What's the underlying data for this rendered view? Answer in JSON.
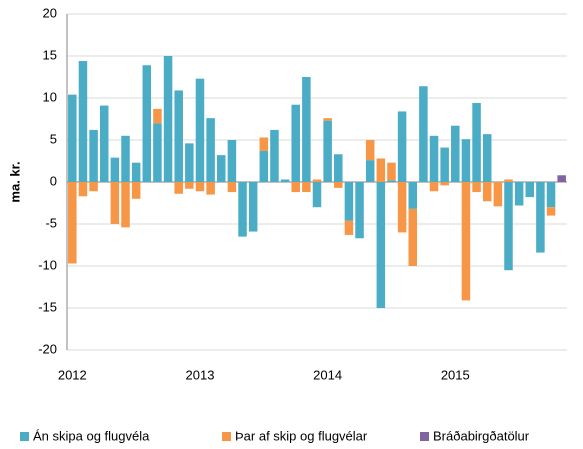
{
  "chart_data": {
    "type": "bar",
    "stacked": true,
    "ylabel": "ma. kr.",
    "categories": [
      "2012",
      null,
      null,
      null,
      null,
      null,
      null,
      null,
      null,
      null,
      null,
      null,
      "2013",
      null,
      null,
      null,
      null,
      null,
      null,
      null,
      null,
      null,
      null,
      null,
      "2014",
      null,
      null,
      null,
      null,
      null,
      null,
      null,
      null,
      null,
      null,
      null,
      "2015",
      null,
      null,
      null,
      null,
      null,
      null,
      null,
      null,
      null,
      null
    ],
    "series": [
      {
        "name": "Án skipa og flugvéla",
        "color": "#4bacc6",
        "values": [
          10.4,
          14.4,
          6.2,
          9.1,
          2.9,
          5.5,
          2.3,
          13.9,
          7.0,
          15.0,
          10.9,
          4.6,
          12.3,
          7.6,
          3.2,
          5.0,
          -6.5,
          -5.9,
          3.7,
          6.2,
          0.3,
          9.2,
          12.5,
          -3.0,
          7.3,
          3.3,
          -4.6,
          -6.7,
          2.6,
          -15.0,
          0.2,
          8.4,
          -3.2,
          11.4,
          5.5,
          4.1,
          6.7,
          5.1,
          9.4,
          5.7,
          null,
          -10.5,
          -2.8,
          -1.8,
          -8.4,
          -3.0,
          null
        ]
      },
      {
        "name": "Þar af skip og flugvélar",
        "color": "#f79646",
        "values": [
          -9.7,
          -1.7,
          -1.1,
          null,
          -5.0,
          -5.4,
          -2.0,
          null,
          1.7,
          null,
          -1.4,
          -0.8,
          -1.1,
          -1.5,
          null,
          -1.2,
          null,
          null,
          1.6,
          null,
          null,
          -1.2,
          -1.2,
          0.3,
          0.3,
          -0.7,
          -1.7,
          null,
          2.4,
          2.8,
          2.1,
          -6.0,
          -6.8,
          null,
          -1.1,
          -0.4,
          null,
          -14.1,
          -1.2,
          -2.3,
          -2.9,
          0.3,
          null,
          null,
          null,
          -1.0,
          null
        ]
      },
      {
        "name": "Bráðabirgðatölur",
        "color": "#8064a2",
        "values": [
          null,
          null,
          null,
          null,
          null,
          null,
          null,
          null,
          null,
          null,
          null,
          null,
          null,
          null,
          null,
          null,
          null,
          null,
          null,
          null,
          null,
          null,
          null,
          null,
          null,
          null,
          null,
          null,
          null,
          null,
          null,
          null,
          null,
          null,
          null,
          null,
          null,
          null,
          null,
          null,
          null,
          null,
          null,
          null,
          null,
          null,
          0.8
        ]
      }
    ],
    "ylim": [
      -20,
      20
    ],
    "yticks": [
      -20,
      -15,
      -10,
      -5,
      0,
      5,
      10,
      15,
      20
    ],
    "grid": true,
    "legend": "bottom"
  }
}
